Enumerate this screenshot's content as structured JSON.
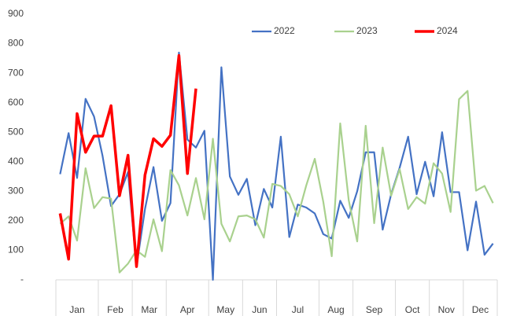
{
  "chart_data": {
    "type": "line",
    "categories": [
      "Jan",
      "Jan",
      "Jan",
      "Jan",
      "Jan",
      "Feb",
      "Feb",
      "Feb",
      "Feb",
      "Mar",
      "Mar",
      "Mar",
      "Mar",
      "Apr",
      "Apr",
      "Apr",
      "Apr",
      "Apr",
      "May",
      "May",
      "May",
      "May",
      "Jun",
      "Jun",
      "Jun",
      "Jun",
      "Jul",
      "Jul",
      "Jul",
      "Jul",
      "Jul",
      "Aug",
      "Aug",
      "Aug",
      "Aug",
      "Sep",
      "Sep",
      "Sep",
      "Sep",
      "Sep",
      "Oct",
      "Oct",
      "Oct",
      "Oct",
      "Nov",
      "Nov",
      "Nov",
      "Nov",
      "Dec",
      "Dec",
      "Dec",
      "Dec"
    ],
    "series": [
      {
        "name": "2022",
        "color": "#4472c4",
        "values": [
          358,
          497,
          345,
          613,
          553,
          420,
          250,
          290,
          365,
          45,
          240,
          382,
          200,
          260,
          770,
          475,
          448,
          505,
          0,
          720,
          350,
          288,
          342,
          185,
          308,
          245,
          485,
          145,
          255,
          245,
          225,
          155,
          140,
          268,
          210,
          300,
          432,
          432,
          170,
          290,
          380,
          485,
          290,
          400,
          283,
          500,
          297,
          297,
          100,
          265,
          85,
          123
        ]
      },
      {
        "name": "2023",
        "color": "#a9d18e",
        "values": [
          190,
          215,
          133,
          378,
          243,
          280,
          275,
          25,
          55,
          100,
          78,
          205,
          97,
          372,
          320,
          218,
          345,
          205,
          478,
          190,
          130,
          215,
          218,
          205,
          143,
          325,
          318,
          290,
          215,
          320,
          410,
          265,
          80,
          530,
          270,
          130,
          522,
          192,
          448,
          285,
          375,
          240,
          280,
          258,
          395,
          360,
          230,
          612,
          640,
          302,
          318,
          260
        ]
      },
      {
        "name": "2024",
        "color": "#ff0000",
        "values": [
          225,
          70,
          563,
          432,
          487,
          487,
          590,
          285,
          422,
          45,
          355,
          478,
          452,
          490,
          760,
          360,
          648,
          null,
          null,
          null,
          null,
          null,
          null,
          null,
          null,
          null,
          null,
          null,
          null,
          null,
          null,
          null,
          null,
          null,
          null,
          null,
          null,
          null,
          null,
          null,
          null,
          null,
          null,
          null,
          null,
          null,
          null,
          null,
          null,
          null,
          null,
          null
        ]
      }
    ],
    "ylim": [
      0,
      900
    ],
    "yticks": [
      {
        "value": 0,
        "label": "-"
      },
      100,
      200,
      300,
      400,
      500,
      600,
      700,
      800,
      900
    ],
    "grid": false,
    "legend": "top"
  }
}
